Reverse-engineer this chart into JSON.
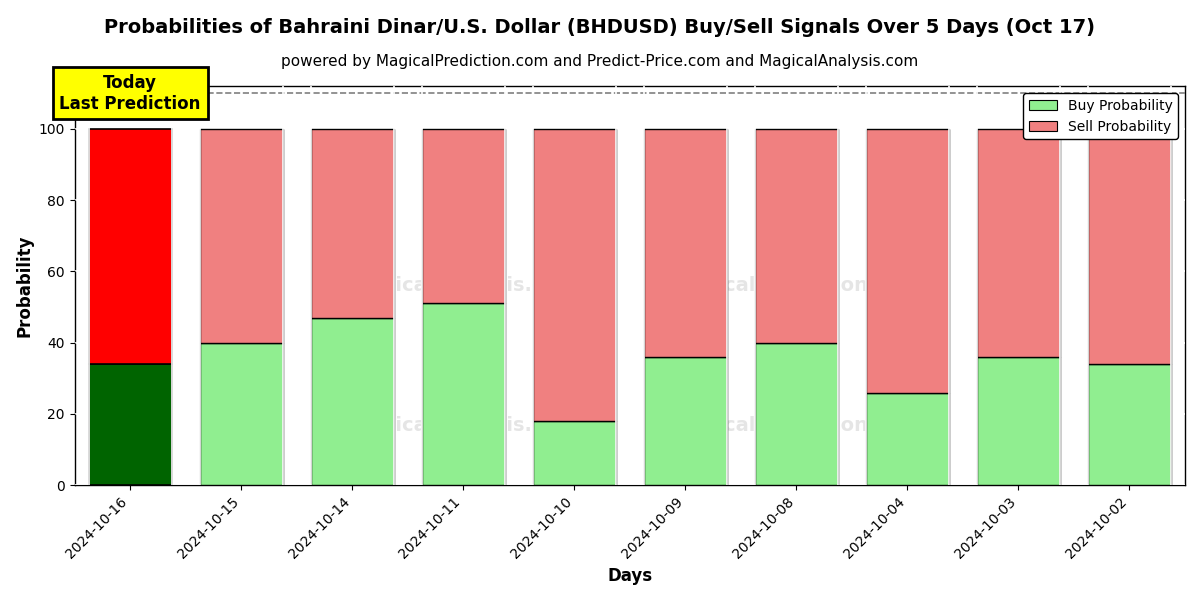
{
  "title": "Probabilities of Bahraini Dinar/U.S. Dollar (BHDUSD) Buy/Sell Signals Over 5 Days (Oct 17)",
  "subtitle": "powered by MagicalPrediction.com and Predict-Price.com and MagicalAnalysis.com",
  "xlabel": "Days",
  "ylabel": "Probability",
  "categories": [
    "2024-10-16",
    "2024-10-15",
    "2024-10-14",
    "2024-10-11",
    "2024-10-10",
    "2024-10-09",
    "2024-10-08",
    "2024-10-04",
    "2024-10-03",
    "2024-10-02"
  ],
  "buy_values": [
    34,
    40,
    47,
    51,
    18,
    36,
    40,
    26,
    36,
    34
  ],
  "sell_values": [
    66,
    60,
    53,
    49,
    82,
    64,
    60,
    74,
    64,
    66
  ],
  "today_buy_color": "#006400",
  "today_sell_color": "#FF0000",
  "buy_color": "#90EE90",
  "sell_color": "#F08080",
  "today_annotation": "Today\nLast Prediction",
  "today_annotation_bg": "#FFFF00",
  "ylim": [
    0,
    112
  ],
  "yticks": [
    0,
    20,
    40,
    60,
    80,
    100
  ],
  "legend_buy_label": "Buy Probability",
  "legend_sell_label": "Sell Probability",
  "title_fontsize": 14,
  "subtitle_fontsize": 11,
  "label_fontsize": 12,
  "tick_fontsize": 10,
  "dashed_line_y": 110,
  "bar_width": 0.75
}
